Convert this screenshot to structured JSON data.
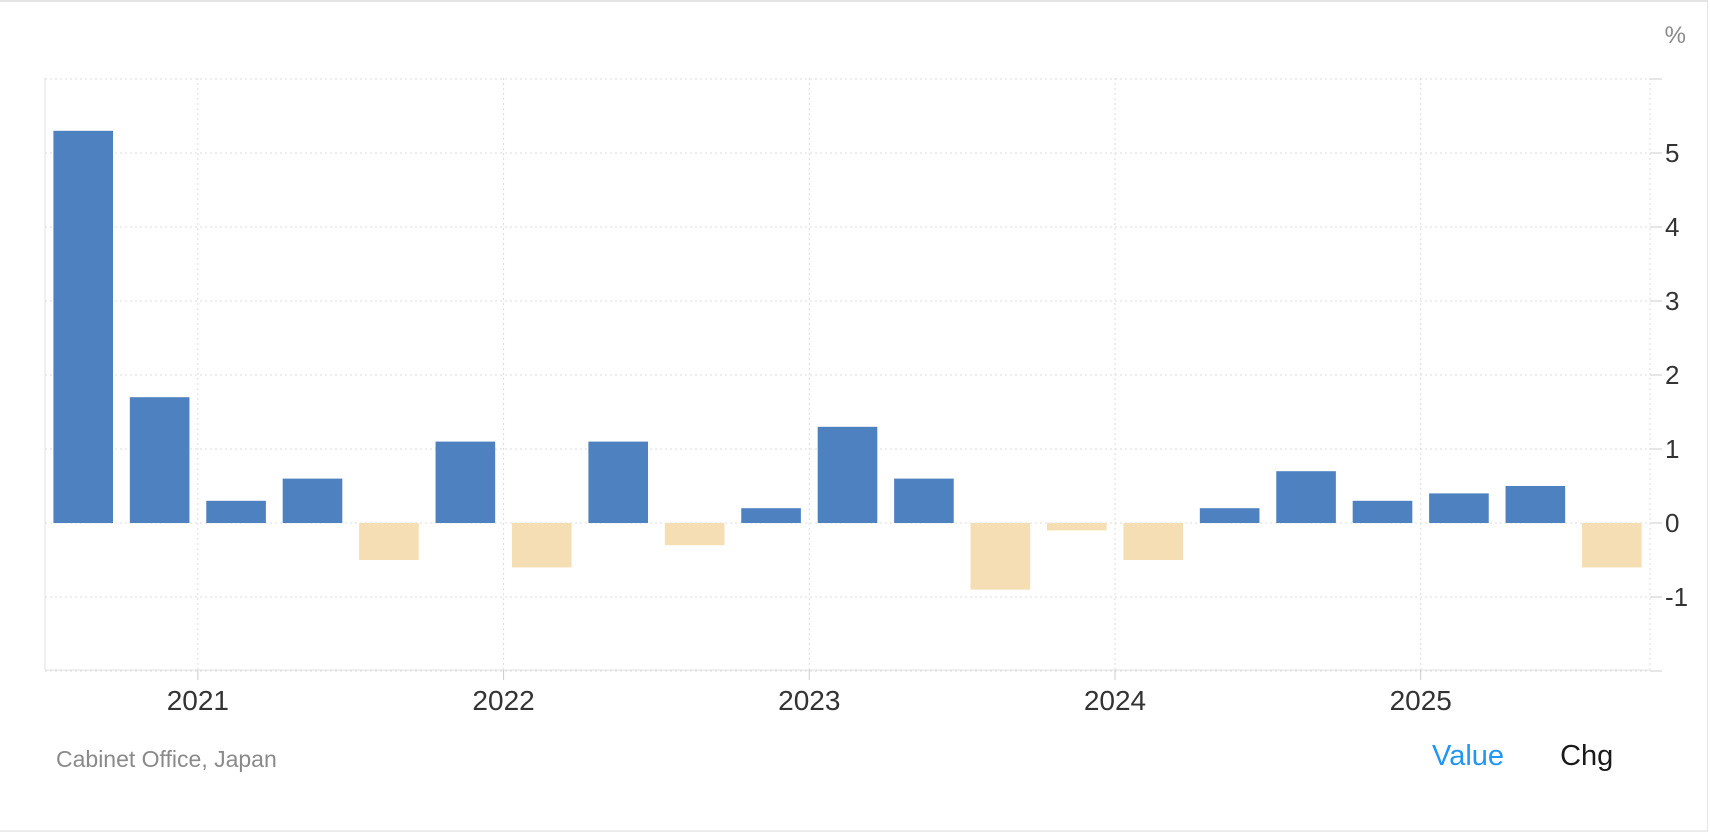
{
  "chart_data": {
    "type": "bar",
    "unit": "%",
    "x": [
      "2020 Q3",
      "2020 Q4",
      "2021 Q1",
      "2021 Q2",
      "2021 Q3",
      "2021 Q4",
      "2022 Q1",
      "2022 Q2",
      "2022 Q3",
      "2022 Q4",
      "2023 Q1",
      "2023 Q2",
      "2023 Q3",
      "2023 Q4",
      "2024 Q1",
      "2024 Q2",
      "2024 Q3",
      "2024 Q4",
      "2025 Q1",
      "2025 Q2",
      "2025 Q3"
    ],
    "values": [
      5.3,
      1.7,
      0.3,
      0.6,
      -0.5,
      1.1,
      -0.6,
      1.1,
      -0.3,
      0.2,
      1.3,
      0.6,
      -0.9,
      -0.1,
      -0.5,
      0.2,
      0.7,
      0.3,
      0.4,
      0.5,
      -0.6
    ],
    "x_ticks": [
      "2021",
      "2022",
      "2023",
      "2024",
      "2025"
    ],
    "y_ticks": [
      "-1",
      "0",
      "1",
      "2",
      "3",
      "4",
      "5"
    ],
    "ylim": [
      -2,
      6
    ],
    "grid": true,
    "colors": {
      "positive": "#4e81c0",
      "negative": "#f5deb3",
      "grid": "#dddddd",
      "axis_text": "#333333"
    }
  },
  "source": "Cabinet Office, Japan",
  "toggles": {
    "value_label": "Value",
    "chg_label": "Chg"
  }
}
